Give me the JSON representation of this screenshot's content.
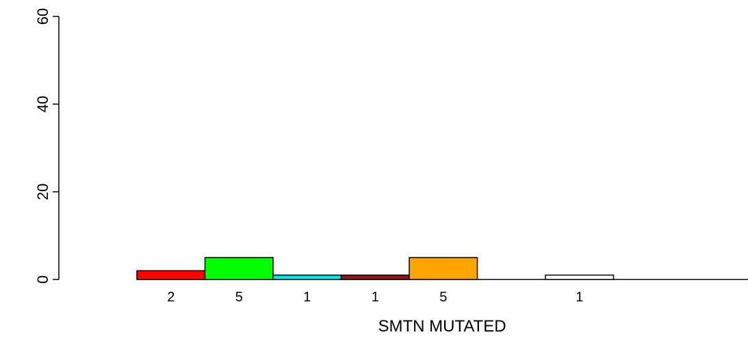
{
  "chart_data": {
    "type": "bar",
    "xlabel": "SMTN MUTATED",
    "ylabel": "",
    "ylim": [
      0,
      60
    ],
    "yticks": [
      0,
      20,
      40,
      60
    ],
    "bars": [
      {
        "value": 2,
        "label": "2",
        "color": "#ff0000"
      },
      {
        "value": 5,
        "label": "5",
        "color": "#00ff00"
      },
      {
        "value": 1,
        "label": "1",
        "color": "#00e5e5"
      },
      {
        "value": 1,
        "label": "1",
        "color": "#8b1a1a"
      },
      {
        "value": 5,
        "label": "5",
        "color": "#ffa500"
      },
      {
        "value": 0,
        "label": "",
        "color": "#ffffff"
      },
      {
        "value": 1,
        "label": "1",
        "color": "#ffffff"
      },
      {
        "value": 0,
        "label": "",
        "color": "#ffffff"
      },
      {
        "value": 0,
        "label": "",
        "color": "#ffffff"
      }
    ]
  }
}
